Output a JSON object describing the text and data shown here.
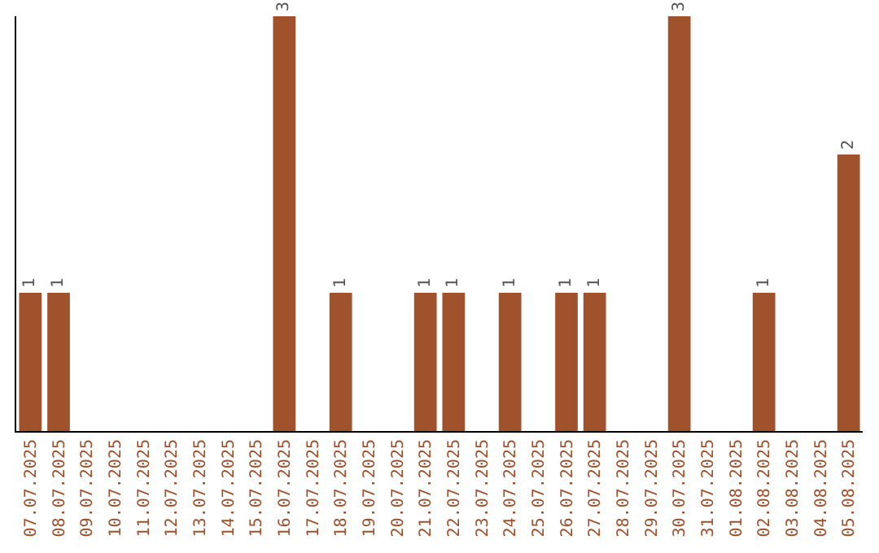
{
  "chart_data": {
    "type": "bar",
    "categories": [
      "07.07.2025",
      "08.07.2025",
      "09.07.2025",
      "10.07.2025",
      "11.07.2025",
      "12.07.2025",
      "13.07.2025",
      "14.07.2025",
      "15.07.2025",
      "16.07.2025",
      "17.07.2025",
      "18.07.2025",
      "19.07.2025",
      "20.07.2025",
      "21.07.2025",
      "22.07.2025",
      "23.07.2025",
      "24.07.2025",
      "25.07.2025",
      "26.07.2025",
      "27.07.2025",
      "28.07.2025",
      "29.07.2025",
      "30.07.2025",
      "31.07.2025",
      "01.08.2025",
      "02.08.2025",
      "03.08.2025",
      "04.08.2025",
      "05.08.2025"
    ],
    "values": [
      1,
      1,
      0,
      0,
      0,
      0,
      0,
      0,
      0,
      3,
      0,
      1,
      0,
      0,
      1,
      1,
      0,
      1,
      0,
      1,
      1,
      0,
      0,
      3,
      0,
      0,
      1,
      0,
      0,
      2
    ],
    "value_labels": [
      "1",
      "1",
      null,
      null,
      null,
      null,
      null,
      null,
      null,
      "3",
      null,
      "1",
      null,
      null,
      "1",
      "1",
      null,
      "1",
      null,
      "1",
      "1",
      null,
      null,
      "3",
      null,
      null,
      "1",
      null,
      null,
      "2"
    ],
    "color": "#a0522d",
    "ylim": [
      0,
      3
    ],
    "tick_labels": "x"
  }
}
